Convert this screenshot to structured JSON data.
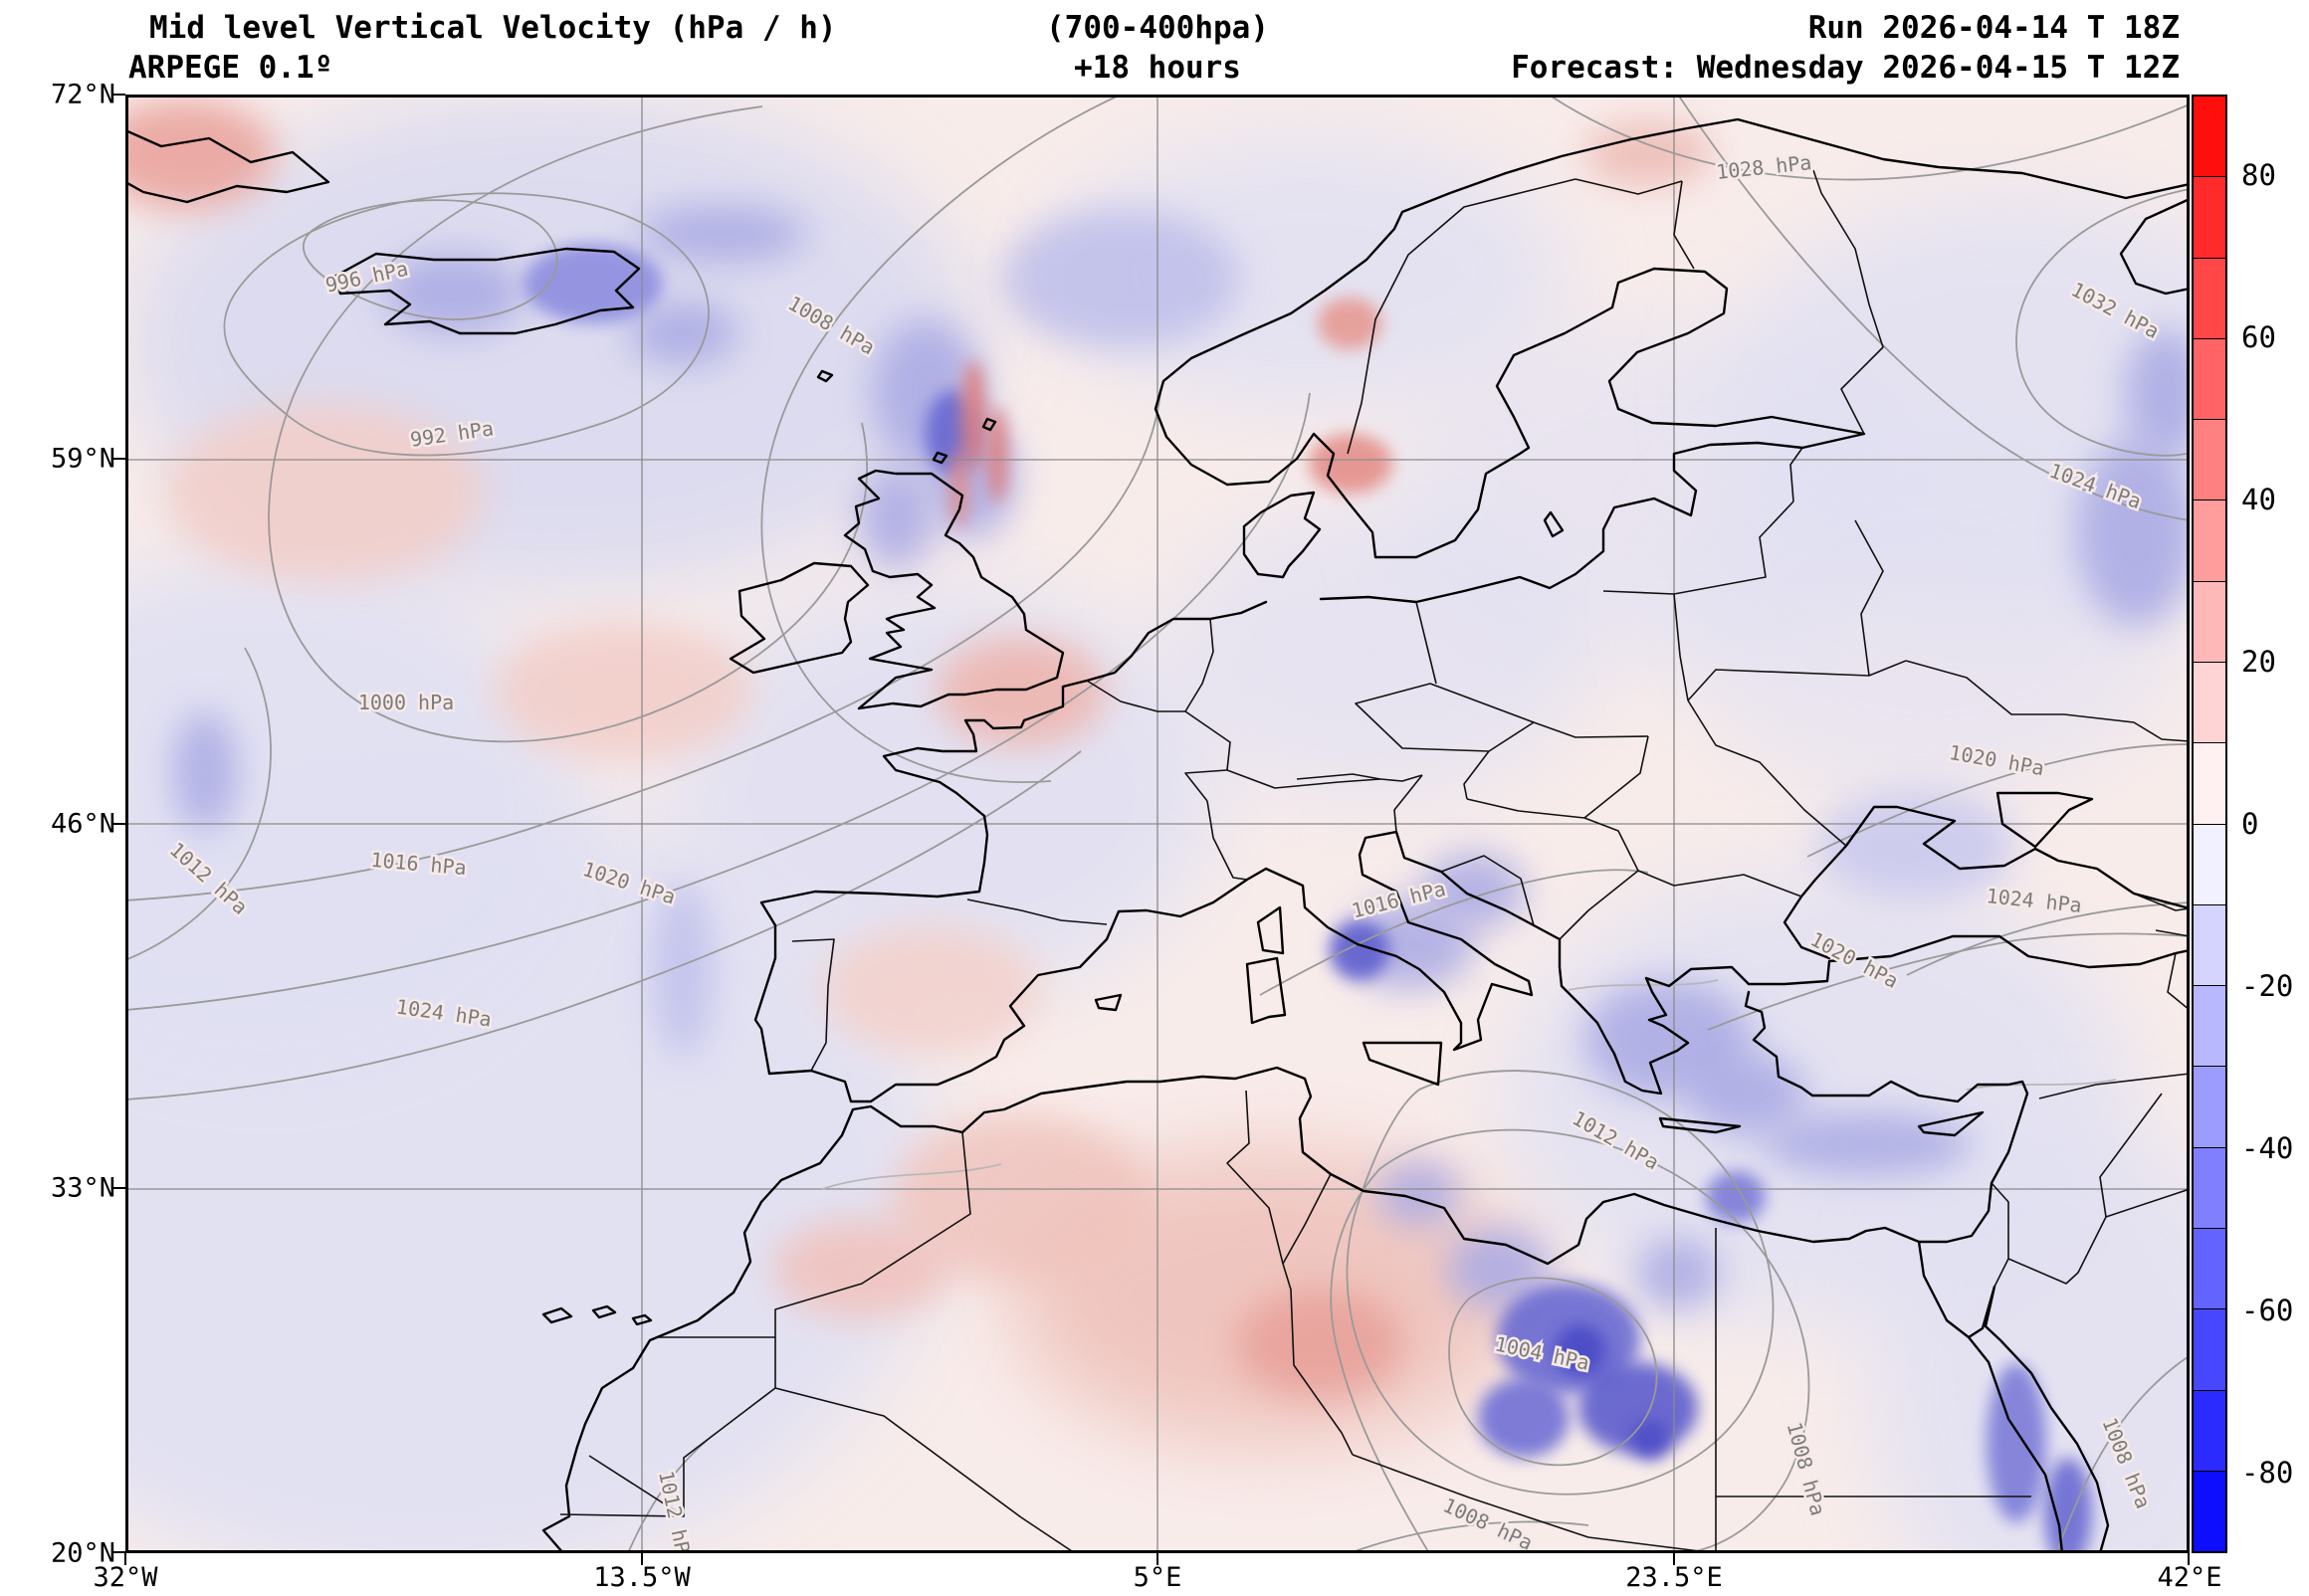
{
  "header": {
    "title": "Mid level Vertical Velocity (hPa / h)",
    "level_note": "(700-400hpa)",
    "model": "ARPEGE 0.1º",
    "lead_time": "+18 hours",
    "run_line": "Run 2026-04-14 T 18Z",
    "forecast_line": "Forecast: Wednesday 2026-04-15 T 12Z"
  },
  "axes": {
    "y_ticks": [
      "72°N",
      "59°N",
      "46°N",
      "33°N",
      "20°N"
    ],
    "x_ticks": [
      "32°W",
      "13.5°W",
      "5°E",
      "23.5°E",
      "42°E"
    ]
  },
  "colorbar": {
    "ticks": [
      "80",
      "60",
      "40",
      "20",
      "0",
      "-20",
      "-40",
      "-60",
      "-80"
    ],
    "segment_colors": [
      "#ff0e0e",
      "#ff2b2b",
      "#ff4747",
      "#ff6363",
      "#ff8080",
      "#ff9c9c",
      "#ffb8b8",
      "#ffd4d4",
      "#fff1f1",
      "#f1f1ff",
      "#d4d4ff",
      "#b8b8ff",
      "#9c9cff",
      "#8080ff",
      "#6363ff",
      "#4747ff",
      "#2b2bff",
      "#0e0eff"
    ]
  },
  "isobar_labels": [
    "996 hPa",
    "1008 hPa",
    "992 hPa",
    "1000 hPa",
    "1016 hPa",
    "1012 hPa",
    "1020 hPa",
    "1024 hPa",
    "1028 hPa",
    "1032 hPa",
    "1024 hPa",
    "1020 hPa",
    "1024 hPa",
    "1020 hPa",
    "1016 hPa",
    "1012 hPa",
    "1004 hPa",
    "1008 hPa",
    "1008 hPa",
    "1012 hPa",
    "1008 hPa"
  ],
  "chart_data": {
    "type": "heatmap",
    "title": "Mid level Vertical Velocity (hPa / h) (700-400hpa)",
    "model": "ARPEGE 0.1º",
    "run": "2026-04-14 T 18Z",
    "forecast_valid": "Wednesday 2026-04-15 T 12Z",
    "lead_hours": 18,
    "units": "hPa/h",
    "extent": {
      "lon_min_deg": -32,
      "lon_max_deg": 42,
      "lat_min_deg": 20,
      "lat_max_deg": 72
    },
    "x_tick_values": [
      "32°W",
      "13.5°W",
      "5°E",
      "23.5°E",
      "42°E"
    ],
    "y_tick_values": [
      "72°N",
      "59°N",
      "46°N",
      "33°N",
      "20°N"
    ],
    "colorbar": {
      "min": -90,
      "max": 90,
      "step": 10,
      "ticks": [
        80,
        60,
        40,
        20,
        0,
        -20,
        -40,
        -60,
        -80
      ],
      "positive_color": "red (descent)",
      "negative_color": "blue (ascent)"
    },
    "isobars_hpa": [
      992,
      996,
      1000,
      1004,
      1008,
      1012,
      1016,
      1020,
      1024,
      1028,
      1032
    ],
    "grid": true,
    "legend_position": "right colorbar",
    "pressure_features": [
      {
        "type": "low",
        "value_hpa": 992,
        "location": "near Iceland / North Atlantic"
      },
      {
        "type": "low",
        "value_hpa": 1004,
        "location": "eastern Libya / Egypt"
      },
      {
        "type": "high",
        "value_hpa": 1032,
        "location": "north-east Europe / Russia"
      },
      {
        "type": "high",
        "value_hpa": 1024,
        "location": "subtropical Atlantic and south-east Europe"
      }
    ],
    "notable_ascent_regions": [
      "Iceland",
      "Scotland / North Sea",
      "central Mediterranean / Italy",
      "Aegean / Turkey",
      "Libya-Egypt storm cluster",
      "Red Sea"
    ],
    "notable_descent_regions": [
      "central Sahara",
      "western Iberia offshore",
      "southern Norway coast"
    ]
  }
}
